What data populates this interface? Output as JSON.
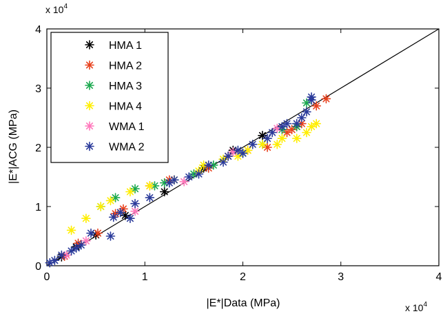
{
  "chart_data": {
    "type": "scatter",
    "title": "",
    "xlabel": "|E*|Data (MPa)",
    "ylabel": "|E*|ACG (MPa)",
    "x_multiplier": {
      "base": "x 10",
      "exp": "4"
    },
    "y_multiplier": {
      "base": "x 10",
      "exp": "4"
    },
    "xlim": [
      0,
      40000
    ],
    "ylim": [
      0,
      40000
    ],
    "x_ticks": [
      0,
      10000,
      20000,
      30000,
      40000
    ],
    "x_tick_labels": [
      "0",
      "1",
      "2",
      "3",
      "4"
    ],
    "y_ticks": [
      0,
      10000,
      20000,
      30000,
      40000
    ],
    "y_tick_labels": [
      "0",
      "1",
      "2",
      "3",
      "4"
    ],
    "grid": false,
    "legend_position": "top-left",
    "marker": "asterisk",
    "line_of_equality": {
      "x": [
        0,
        40000
      ],
      "y": [
        0,
        40000
      ],
      "color": "#000000"
    },
    "series": [
      {
        "name": "HMA 1",
        "color": "#000000",
        "points": [
          [
            1500,
            1500
          ],
          [
            3000,
            3200
          ],
          [
            5000,
            5200
          ],
          [
            8000,
            8500
          ],
          [
            12000,
            12500
          ],
          [
            16000,
            16500
          ],
          [
            19000,
            19500
          ],
          [
            22000,
            22000
          ]
        ]
      },
      {
        "name": "HMA 2",
        "color": "#e8401c",
        "points": [
          [
            1800,
            1600
          ],
          [
            3200,
            3800
          ],
          [
            5200,
            5500
          ],
          [
            7000,
            8800
          ],
          [
            7800,
            9600
          ],
          [
            10500,
            13500
          ],
          [
            12500,
            14500
          ],
          [
            16500,
            16500
          ],
          [
            18500,
            18500
          ],
          [
            20500,
            19500
          ],
          [
            22500,
            20000
          ],
          [
            24500,
            22500
          ],
          [
            25000,
            23000
          ],
          [
            25500,
            23500
          ],
          [
            26000,
            24000
          ],
          [
            27500,
            27000
          ],
          [
            28500,
            28200
          ]
        ]
      },
      {
        "name": "HMA 3",
        "color": "#1aa84e",
        "points": [
          [
            5500,
            10000
          ],
          [
            7000,
            11500
          ],
          [
            9000,
            13000
          ],
          [
            11000,
            13500
          ],
          [
            12000,
            14000
          ],
          [
            15000,
            15500
          ],
          [
            17000,
            17000
          ],
          [
            20000,
            19000
          ],
          [
            22000,
            20500
          ],
          [
            24000,
            23000
          ],
          [
            25500,
            23500
          ],
          [
            26500,
            27500
          ]
        ]
      },
      {
        "name": "HMA 4",
        "color": "#ffee00",
        "points": [
          [
            2500,
            6000
          ],
          [
            4000,
            8000
          ],
          [
            5500,
            10000
          ],
          [
            6500,
            11000
          ],
          [
            8500,
            12500
          ],
          [
            10500,
            13500
          ],
          [
            13000,
            14500
          ],
          [
            15500,
            16000
          ],
          [
            16000,
            17000
          ],
          [
            18000,
            18000
          ],
          [
            19500,
            18500
          ],
          [
            20500,
            19500
          ],
          [
            22000,
            20500
          ],
          [
            23500,
            20500
          ],
          [
            24000,
            21500
          ],
          [
            25500,
            21500
          ],
          [
            26500,
            22500
          ],
          [
            27000,
            23500
          ],
          [
            27500,
            24000
          ]
        ]
      },
      {
        "name": "WMA 1",
        "color": "#ff77bb",
        "points": [
          [
            2000,
            1800
          ],
          [
            4000,
            4200
          ],
          [
            9000,
            9200
          ],
          [
            14000,
            14200
          ],
          [
            19000,
            19200
          ],
          [
            23500,
            23200
          ]
        ]
      },
      {
        "name": "WMA 2",
        "color": "#2a3a9a",
        "points": [
          [
            300,
            500
          ],
          [
            800,
            900
          ],
          [
            1500,
            1800
          ],
          [
            2500,
            2500
          ],
          [
            3000,
            3000
          ],
          [
            3500,
            3500
          ],
          [
            4500,
            5500
          ],
          [
            6500,
            5000
          ],
          [
            6800,
            8200
          ],
          [
            7500,
            9000
          ],
          [
            8500,
            8000
          ],
          [
            9000,
            10500
          ],
          [
            10500,
            11500
          ],
          [
            12500,
            14000
          ],
          [
            13000,
            14500
          ],
          [
            14500,
            15000
          ],
          [
            15500,
            15500
          ],
          [
            16500,
            17000
          ],
          [
            18000,
            17500
          ],
          [
            18500,
            18500
          ],
          [
            19500,
            19500
          ],
          [
            20000,
            19000
          ],
          [
            21000,
            20500
          ],
          [
            22500,
            21500
          ],
          [
            23000,
            22500
          ],
          [
            24000,
            23500
          ],
          [
            24500,
            24000
          ],
          [
            25500,
            24000
          ],
          [
            26000,
            25000
          ],
          [
            26500,
            26000
          ],
          [
            27000,
            28000
          ],
          [
            27000,
            28500
          ]
        ]
      }
    ]
  }
}
